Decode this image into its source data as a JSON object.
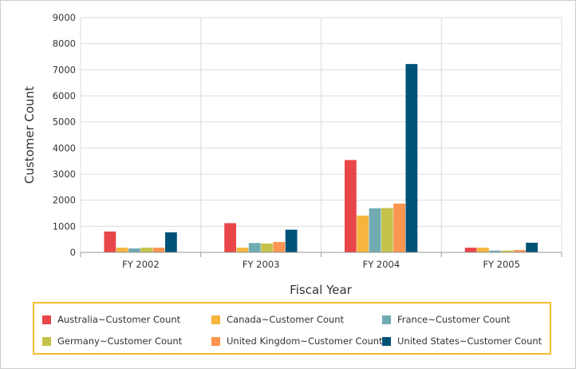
{
  "chart_data": {
    "type": "bar",
    "title": "",
    "xlabel": "Fiscal Year",
    "ylabel": "Customer Count",
    "ylim": [
      0,
      9000
    ],
    "yticks": [
      0,
      1000,
      2000,
      3000,
      4000,
      5000,
      6000,
      7000,
      8000,
      9000
    ],
    "grid": true,
    "legend_position": "bottom",
    "categories": [
      "FY 2002",
      "FY 2003",
      "FY 2004",
      "FY 2005"
    ],
    "series": [
      {
        "name": "Australia~Customer Count",
        "color": "#e94649",
        "values": [
          800,
          1120,
          3540,
          180
        ]
      },
      {
        "name": "Canada~Customer Count",
        "color": "#f6b53f",
        "values": [
          180,
          180,
          1410,
          180
        ]
      },
      {
        "name": "France~Customer Count",
        "color": "#6fabb1",
        "values": [
          150,
          360,
          1690,
          70
        ]
      },
      {
        "name": "Germany~Customer Count",
        "color": "#c4c24a",
        "values": [
          180,
          340,
          1700,
          70
        ]
      },
      {
        "name": "United Kingdom~Customer Count",
        "color": "#fb954f",
        "values": [
          180,
          400,
          1870,
          90
        ]
      },
      {
        "name": "United States~Customer Count",
        "color": "#005277",
        "values": [
          770,
          870,
          7220,
          370
        ]
      }
    ]
  }
}
